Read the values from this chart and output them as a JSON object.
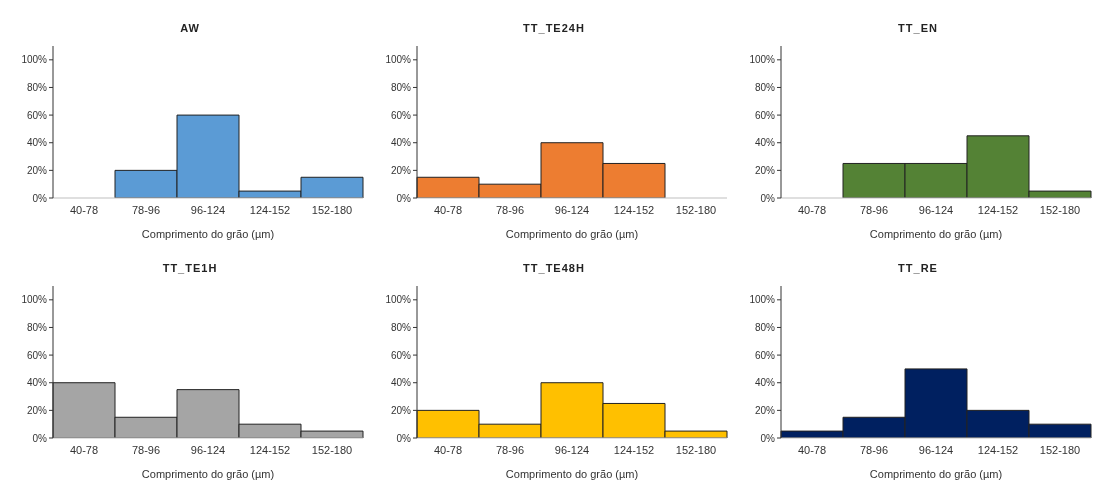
{
  "chart_data": [
    {
      "type": "bar",
      "title": "AW",
      "categories": [
        "40-78",
        "78-96",
        "96-124",
        "124-152",
        "152-180"
      ],
      "values": [
        0,
        20,
        60,
        5,
        15
      ],
      "color": "#5b9bd5",
      "xlabel": "Comprimento do grão (µm)",
      "ylim": [
        0,
        110
      ],
      "yticks": [
        {
          "value": 0,
          "label": "0%"
        },
        {
          "value": 20,
          "label": "20%"
        },
        {
          "value": 40,
          "label": "40%"
        },
        {
          "value": 60,
          "label": "60%"
        },
        {
          "value": 80,
          "label": "80%"
        },
        {
          "value": 100,
          "label": "100%"
        }
      ]
    },
    {
      "type": "bar",
      "title": "TT_TE24H",
      "categories": [
        "40-78",
        "78-96",
        "96-124",
        "124-152",
        "152-180"
      ],
      "values": [
        15,
        10,
        40,
        25,
        0
      ],
      "color": "#ed7d31",
      "xlabel": "Comprimento do grão (µm)",
      "ylim": [
        0,
        110
      ],
      "yticks": [
        {
          "value": 0,
          "label": "0%"
        },
        {
          "value": 20,
          "label": "20%"
        },
        {
          "value": 40,
          "label": "40%"
        },
        {
          "value": 60,
          "label": "60%"
        },
        {
          "value": 80,
          "label": "80%"
        },
        {
          "value": 100,
          "label": "100%"
        }
      ]
    },
    {
      "type": "bar",
      "title": "TT_EN",
      "categories": [
        "40-78",
        "78-96",
        "96-124",
        "124-152",
        "152-180"
      ],
      "values": [
        0,
        25,
        25,
        45,
        5
      ],
      "color": "#548235",
      "xlabel": "Comprimento do grão (µm)",
      "ylim": [
        0,
        110
      ],
      "yticks": [
        {
          "value": 0,
          "label": "0%"
        },
        {
          "value": 20,
          "label": "20%"
        },
        {
          "value": 40,
          "label": "40%"
        },
        {
          "value": 60,
          "label": "60%"
        },
        {
          "value": 80,
          "label": "80%"
        },
        {
          "value": 100,
          "label": "100%"
        }
      ]
    },
    {
      "type": "bar",
      "title": "TT_TE1H",
      "categories": [
        "40-78",
        "78-96",
        "96-124",
        "124-152",
        "152-180"
      ],
      "values": [
        40,
        15,
        35,
        10,
        5
      ],
      "color": "#a5a5a5",
      "xlabel": "Comprimento do grão (µm)",
      "ylim": [
        0,
        110
      ],
      "yticks": [
        {
          "value": 0,
          "label": "0%"
        },
        {
          "value": 20,
          "label": "20%"
        },
        {
          "value": 40,
          "label": "40%"
        },
        {
          "value": 60,
          "label": "60%"
        },
        {
          "value": 80,
          "label": "80%"
        },
        {
          "value": 100,
          "label": "100%"
        }
      ]
    },
    {
      "type": "bar",
      "title": "TT_TE48H",
      "categories": [
        "40-78",
        "78-96",
        "96-124",
        "124-152",
        "152-180"
      ],
      "values": [
        20,
        10,
        40,
        25,
        5
      ],
      "color": "#ffc000",
      "xlabel": "Comprimento do grão (µm)",
      "ylim": [
        0,
        110
      ],
      "yticks": [
        {
          "value": 0,
          "label": "0%"
        },
        {
          "value": 20,
          "label": "20%"
        },
        {
          "value": 40,
          "label": "40%"
        },
        {
          "value": 60,
          "label": "60%"
        },
        {
          "value": 80,
          "label": "80%"
        },
        {
          "value": 100,
          "label": "100%"
        }
      ]
    },
    {
      "type": "bar",
      "title": "TT_RE",
      "categories": [
        "40-78",
        "78-96",
        "96-124",
        "124-152",
        "152-180"
      ],
      "values": [
        5,
        15,
        50,
        20,
        10
      ],
      "color": "#002060",
      "xlabel": "Comprimento do grão (µm)",
      "ylim": [
        0,
        110
      ],
      "yticks": [
        {
          "value": 0,
          "label": "0%"
        },
        {
          "value": 20,
          "label": "20%"
        },
        {
          "value": 40,
          "label": "40%"
        },
        {
          "value": 60,
          "label": "60%"
        },
        {
          "value": 80,
          "label": "80%"
        },
        {
          "value": 100,
          "label": "100%"
        }
      ]
    }
  ]
}
